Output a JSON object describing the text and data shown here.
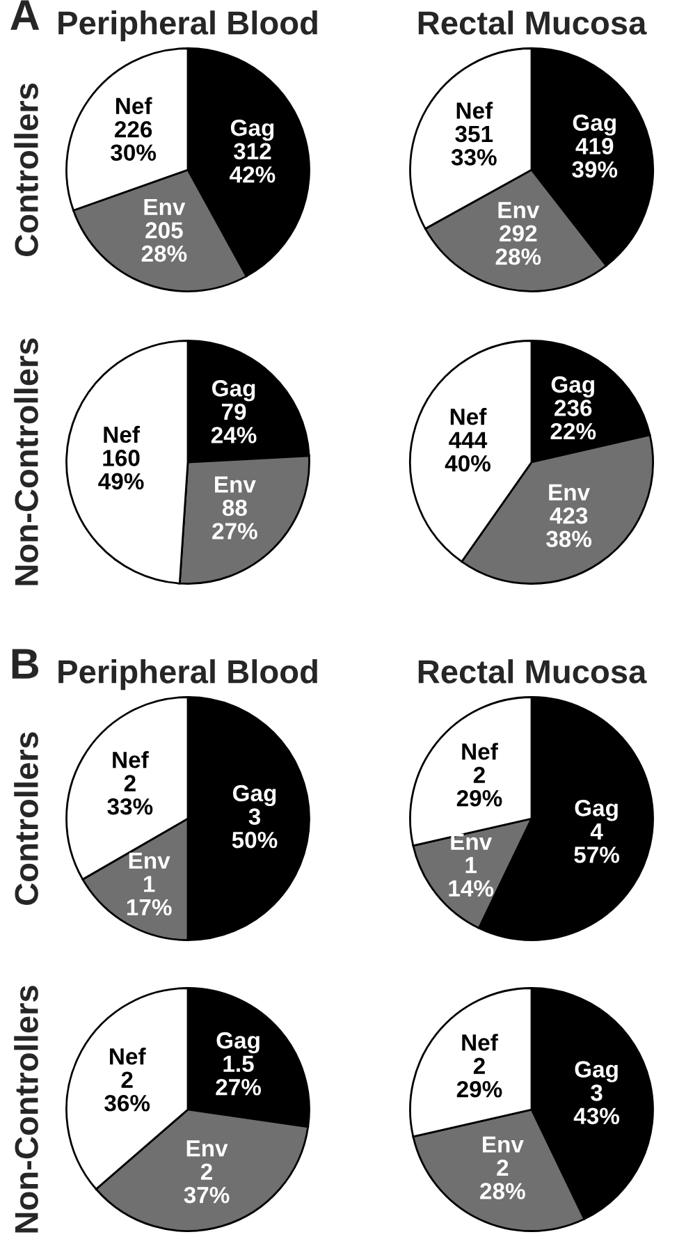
{
  "chart_data": [
    {
      "type": "pie",
      "title": "Peripheral Blood",
      "ylabel": "Controllers",
      "annotations": [
        "A"
      ],
      "categories": [
        "Gag",
        "Env",
        "Nef"
      ],
      "values": [
        312,
        205,
        226
      ],
      "colors": [
        "#000000",
        "#707070",
        "#ffffff"
      ],
      "value_labels": [
        "312\n42%",
        "205\n28%",
        "226\n30%"
      ]
    },
    {
      "type": "pie",
      "title": "Rectal Mucosa",
      "categories": [
        "Gag",
        "Env",
        "Nef"
      ],
      "values": [
        419,
        292,
        351
      ],
      "colors": [
        "#000000",
        "#707070",
        "#ffffff"
      ],
      "value_labels": [
        "419\n39%",
        "292\n28%",
        "351\n33%"
      ]
    },
    {
      "type": "pie",
      "ylabel": "Non-Controllers",
      "categories": [
        "Gag",
        "Env",
        "Nef"
      ],
      "values": [
        79,
        88,
        160
      ],
      "colors": [
        "#000000",
        "#707070",
        "#ffffff"
      ],
      "value_labels": [
        "79\n24%",
        "88\n27%",
        "160\n49%"
      ]
    },
    {
      "type": "pie",
      "categories": [
        "Gag",
        "Env",
        "Nef"
      ],
      "values": [
        236,
        423,
        444
      ],
      "colors": [
        "#000000",
        "#707070",
        "#ffffff"
      ],
      "value_labels": [
        "236\n22%",
        "423\n38%",
        "444\n40%"
      ]
    },
    {
      "type": "pie",
      "title": "Peripheral Blood",
      "ylabel": "Controllers",
      "annotations": [
        "B"
      ],
      "categories": [
        "Gag",
        "Env",
        "Nef"
      ],
      "values": [
        3,
        1,
        2
      ],
      "colors": [
        "#000000",
        "#707070",
        "#ffffff"
      ],
      "value_labels": [
        "3\n50%",
        "1\n17%",
        "2\n33%"
      ]
    },
    {
      "type": "pie",
      "title": "Rectal Mucosa",
      "categories": [
        "Gag",
        "Env",
        "Nef"
      ],
      "values": [
        4,
        1,
        2
      ],
      "colors": [
        "#000000",
        "#707070",
        "#ffffff"
      ],
      "value_labels": [
        "4\n57%",
        "1\n14%",
        "2\n29%"
      ]
    },
    {
      "type": "pie",
      "ylabel": "Non-Controllers",
      "categories": [
        "Gag",
        "Env",
        "Nef"
      ],
      "values": [
        1.5,
        2,
        2
      ],
      "colors": [
        "#000000",
        "#707070",
        "#ffffff"
      ],
      "value_labels": [
        "1.5\n27%",
        "2\n37%",
        "2\n36%"
      ]
    },
    {
      "type": "pie",
      "categories": [
        "Gag",
        "Env",
        "Nef"
      ],
      "values": [
        3,
        2,
        2
      ],
      "colors": [
        "#000000",
        "#707070",
        "#ffffff"
      ],
      "value_labels": [
        "3\n43%",
        "2\n28%",
        "2\n29%"
      ]
    }
  ]
}
